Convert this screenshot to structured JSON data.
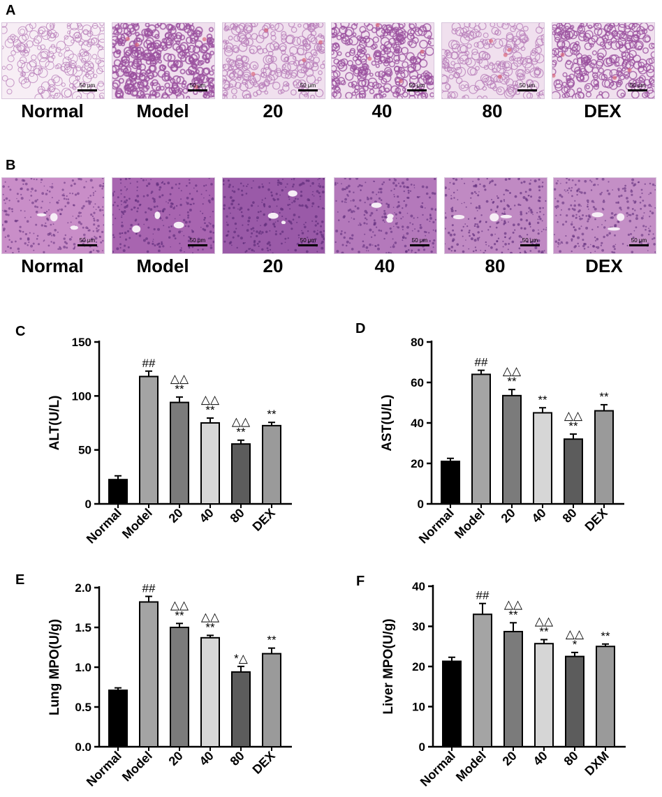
{
  "panels": {
    "A": "A",
    "B": "B",
    "C": "C",
    "D": "D",
    "E": "E",
    "F": "F"
  },
  "histology": {
    "scalebar_label": "50 μm",
    "row_A": {
      "captions": [
        "Normal",
        "Model",
        "20",
        "40",
        "80",
        "DEX"
      ],
      "tone": "lung"
    },
    "row_B": {
      "captions": [
        "Normal",
        "Model",
        "20",
        "40",
        "80",
        "DEX"
      ],
      "tone": "liver"
    }
  },
  "chart_data": [
    {
      "panel": "C",
      "type": "bar",
      "ylabel": "ALT(U/L)",
      "categories": [
        "Normal",
        "Model",
        "20",
        "40",
        "80",
        "DEX"
      ],
      "values": [
        22.5,
        118,
        94,
        75,
        55.5,
        72.5
      ],
      "errors": [
        3.5,
        5,
        5,
        4.5,
        3.5,
        3
      ],
      "annotations": [
        "",
        "##",
        "△△\n**",
        "△△\n**",
        "△△\n**",
        "**"
      ],
      "ylim": [
        0,
        150
      ],
      "yticks": [
        0,
        50,
        100,
        150
      ],
      "colors": [
        "#000000",
        "#a4a4a4",
        "#7b7b7b",
        "#d6d6d6",
        "#5c5c5c",
        "#9a9a9a"
      ]
    },
    {
      "panel": "D",
      "type": "bar",
      "ylabel": "AST(U/L)",
      "categories": [
        "Normal",
        "Model",
        "20",
        "40",
        "80",
        "DEX"
      ],
      "values": [
        21,
        64,
        53.5,
        45,
        32,
        46
      ],
      "errors": [
        1.5,
        2,
        3,
        2.5,
        2.5,
        3
      ],
      "annotations": [
        "",
        "##",
        "△△\n**",
        "**",
        "△△\n**",
        "**"
      ],
      "ylim": [
        0,
        80
      ],
      "yticks": [
        0,
        20,
        40,
        60,
        80
      ],
      "colors": [
        "#000000",
        "#a4a4a4",
        "#7b7b7b",
        "#d6d6d6",
        "#5c5c5c",
        "#9a9a9a"
      ]
    },
    {
      "panel": "E",
      "type": "bar",
      "ylabel": "Lung MPO(U/g)",
      "categories": [
        "Normal",
        "Model",
        "20",
        "40",
        "80",
        "DEX"
      ],
      "values": [
        0.71,
        1.82,
        1.5,
        1.37,
        0.94,
        1.17
      ],
      "errors": [
        0.03,
        0.07,
        0.05,
        0.03,
        0.07,
        0.07
      ],
      "annotations": [
        "",
        "##",
        "△△\n**",
        "△△\n**",
        "*△",
        "**"
      ],
      "ylim": [
        0,
        2.0
      ],
      "yticks": [
        "0.0",
        "0.5",
        "1.0",
        "1.5",
        "2.0"
      ],
      "colors": [
        "#000000",
        "#a4a4a4",
        "#7b7b7b",
        "#d6d6d6",
        "#5c5c5c",
        "#9a9a9a"
      ]
    },
    {
      "panel": "F",
      "type": "bar",
      "ylabel": "Liver MPO(U/g)",
      "categories": [
        "Normal",
        "Model",
        "20",
        "40",
        "80",
        "DXM"
      ],
      "values": [
        21.3,
        33,
        28.7,
        25.7,
        22.5,
        25
      ],
      "errors": [
        1,
        2.7,
        2.2,
        1,
        1,
        0.6
      ],
      "annotations": [
        "",
        "##",
        "△△\n**",
        "△△\n**",
        "△△\n*",
        "**"
      ],
      "ylim": [
        0,
        40
      ],
      "yticks": [
        0,
        10,
        20,
        30,
        40
      ],
      "colors": [
        "#000000",
        "#a4a4a4",
        "#7b7b7b",
        "#d6d6d6",
        "#5c5c5c",
        "#9a9a9a"
      ]
    }
  ]
}
